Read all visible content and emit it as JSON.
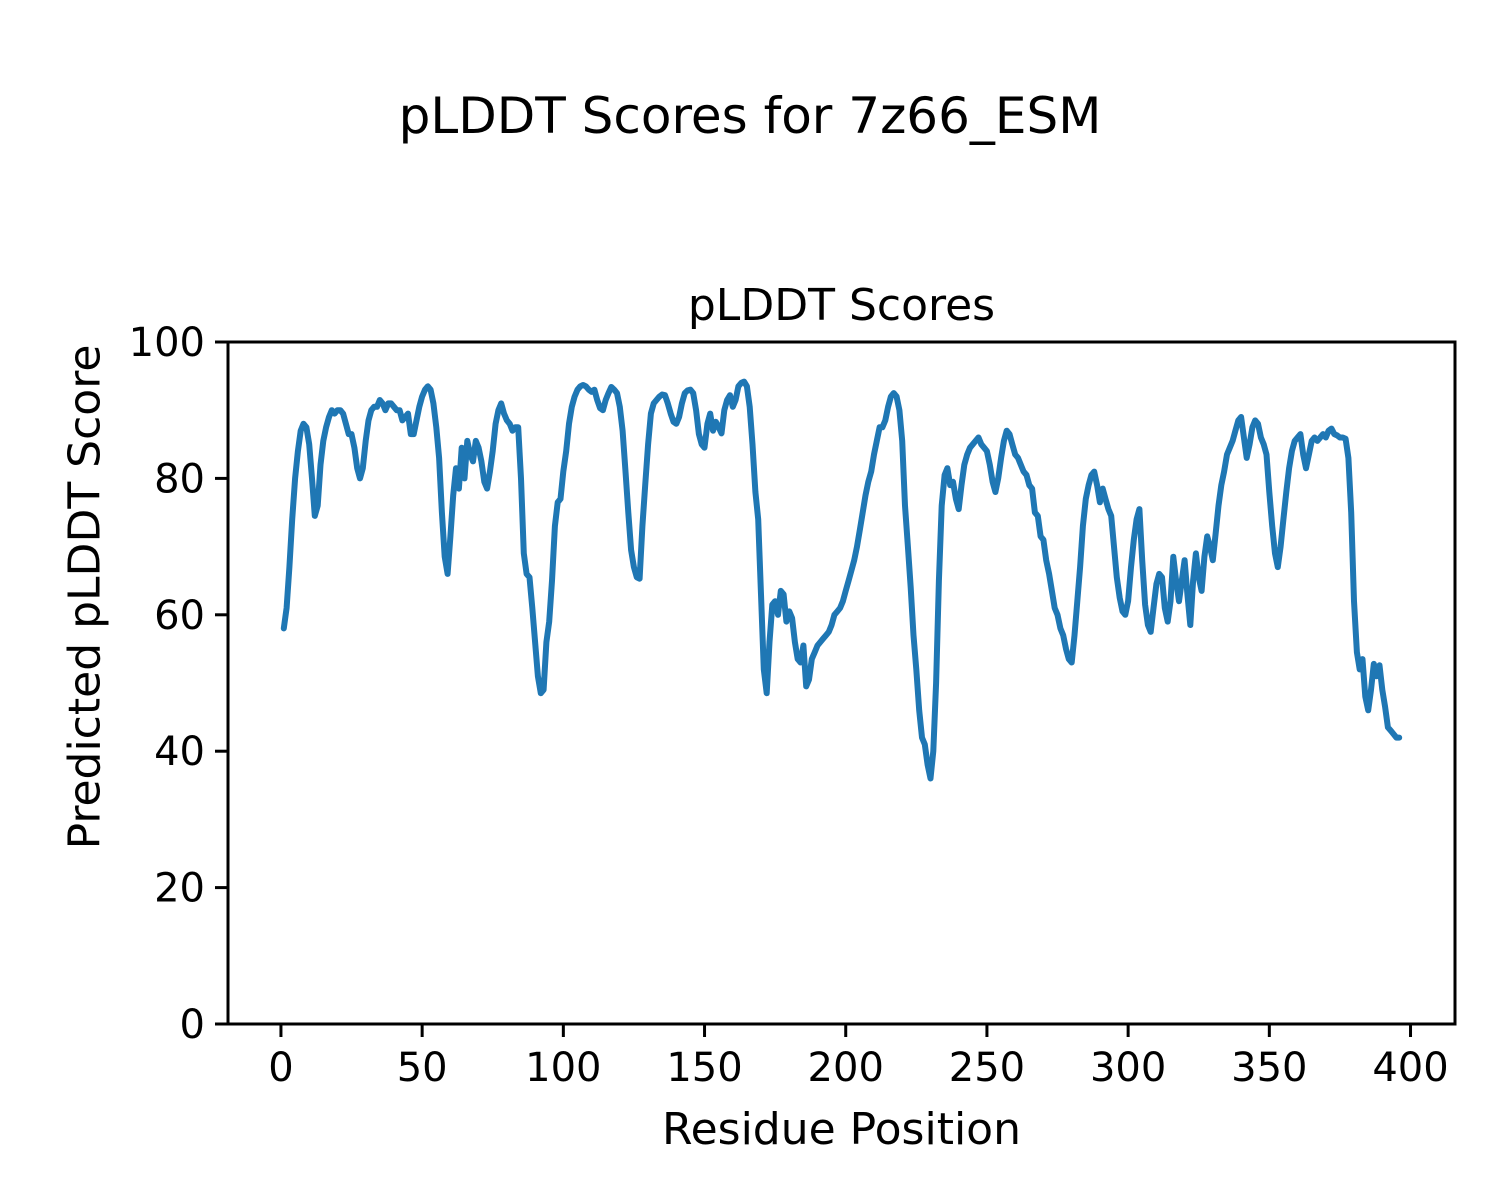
{
  "figure": {
    "suptitle": "pLDDT Scores for 7z66_ESM",
    "background_color": "#ffffff",
    "text_color": "#000000"
  },
  "chart_data": {
    "type": "line",
    "title": "pLDDT Scores",
    "xlabel": "Residue Position",
    "ylabel": "Predicted pLDDT Score",
    "series_name": "pLDDT",
    "line_color": "#1f77b4",
    "line_width": 6,
    "grid": false,
    "legend": null,
    "xlim": [
      -18.75,
      415.75
    ],
    "ylim": [
      0,
      100
    ],
    "xticks": [
      0,
      50,
      100,
      150,
      200,
      250,
      300,
      350,
      400
    ],
    "yticks": [
      0,
      20,
      40,
      60,
      80,
      100
    ],
    "x_start": 1,
    "x_step": 1,
    "values": [
      58,
      61,
      67,
      74,
      80,
      84,
      87,
      88,
      87.5,
      85,
      80,
      74.5,
      76,
      82,
      85.5,
      87.5,
      89,
      90,
      89.5,
      90,
      90,
      89.5,
      88,
      86.5,
      86.5,
      84.5,
      81.5,
      80,
      81.5,
      85.5,
      88.5,
      90,
      90.5,
      90.5,
      91.5,
      91,
      90,
      91,
      91,
      90.5,
      90,
      90,
      88.5,
      89,
      89.5,
      86.5,
      86.5,
      88.5,
      90.5,
      92,
      93,
      93.5,
      93,
      91,
      87.5,
      83,
      75,
      68.5,
      66,
      71.5,
      77.5,
      81.5,
      78.5,
      84.5,
      80,
      85.5,
      83.5,
      82.5,
      85.5,
      84.5,
      82.5,
      79.5,
      78.5,
      81,
      84,
      88,
      90,
      91,
      89.5,
      88.5,
      88,
      87,
      87.5,
      87.5,
      80,
      69,
      66,
      65.5,
      61,
      56,
      51,
      48.5,
      49,
      56,
      59,
      65,
      73,
      76.5,
      77,
      81,
      84,
      88,
      90.5,
      92,
      93,
      93.5,
      93.7,
      93.5,
      93,
      92.7,
      93,
      91.5,
      90.3,
      90,
      91.5,
      92.5,
      93.4,
      93,
      92.5,
      90.5,
      87,
      81,
      75,
      69.5,
      67,
      65.5,
      65.3,
      73,
      79,
      85,
      89.5,
      91,
      91.5,
      92,
      92.3,
      92.2,
      91,
      89.5,
      88.3,
      88,
      89,
      91,
      92.5,
      92.9,
      93,
      92.5,
      90,
      86.5,
      85,
      84.5,
      88,
      89.5,
      87,
      88.3,
      87.5,
      86.6,
      90,
      91.5,
      92.2,
      90.5,
      91.5,
      93.5,
      94,
      94.2,
      93.5,
      90.5,
      85,
      78,
      74,
      63,
      52,
      48.5,
      56,
      61.5,
      62,
      60,
      63.5,
      63,
      59,
      60.5,
      59.5,
      56,
      53.5,
      53,
      55.5,
      49.5,
      50.5,
      53.5,
      54.5,
      55.5,
      56,
      56.5,
      57,
      57.5,
      58.5,
      60,
      60.5,
      61,
      62,
      63.5,
      65,
      66.5,
      68,
      70,
      72.5,
      75,
      77.5,
      79.5,
      81,
      83.5,
      85.5,
      87.5,
      87.5,
      88.5,
      90.5,
      92,
      92.5,
      92,
      90,
      85.5,
      76,
      70,
      64,
      57,
      52,
      46,
      42,
      41,
      38,
      36,
      40,
      50,
      65,
      76,
      80.5,
      81.5,
      79,
      79.5,
      77,
      75.5,
      79,
      82,
      83.5,
      84.5,
      85,
      85.5,
      86,
      85,
      84.5,
      84,
      82,
      79.5,
      78,
      80,
      83,
      85.5,
      87,
      86.5,
      85,
      83.5,
      83,
      82,
      81,
      80.5,
      79,
      78.5,
      75,
      74.5,
      71.5,
      71,
      68,
      66,
      63.5,
      61,
      60,
      58,
      57,
      55,
      53.5,
      53,
      57,
      62,
      67,
      73,
      77,
      79,
      80.5,
      81,
      79,
      76.5,
      78.5,
      77,
      75.5,
      74.5,
      70,
      65.5,
      62.5,
      60.5,
      60,
      62,
      67,
      71,
      74,
      75.5,
      68,
      61.5,
      58.5,
      57.5,
      61,
      64.5,
      66,
      65.5,
      61,
      59,
      62,
      68.5,
      65,
      62,
      65,
      68,
      63,
      58.5,
      65,
      69,
      65.5,
      63.5,
      68.5,
      71.5,
      70,
      68,
      72,
      76,
      79,
      81,
      83.5,
      84.5,
      85.5,
      87,
      88.5,
      89,
      86,
      83,
      85,
      87.5,
      88.5,
      88,
      86,
      85,
      83.5,
      78,
      73,
      69,
      67,
      70,
      74,
      78,
      81.5,
      84,
      85.5,
      86,
      86.5,
      83.5,
      81.5,
      83.5,
      85.5,
      86,
      85.5,
      86,
      86.5,
      86,
      87,
      87.3,
      86.5,
      86.3,
      86,
      86,
      85.8,
      83,
      75,
      62,
      54.5,
      52,
      53.5,
      48,
      46,
      49,
      52.8,
      51,
      52.6,
      49,
      46.5,
      43.5,
      43,
      42.5,
      42,
      42
    ]
  },
  "axes_style": {
    "spine_color": "#000000",
    "spine_width": 3,
    "tick_length": 13,
    "tick_width": 3
  }
}
